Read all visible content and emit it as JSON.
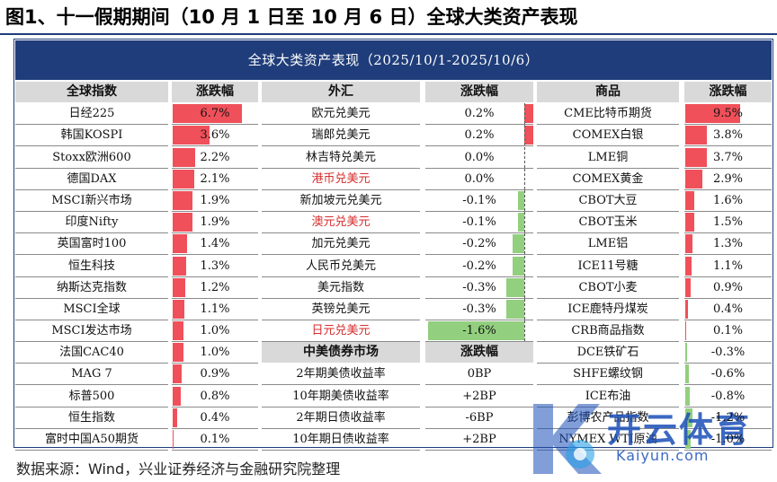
{
  "figure_title": "图1、十一假期期间（10 月 1 日至 10 月 6 日）全球大类资产表现",
  "banner": "全球大类资产表现（2025/10/1-2025/10/6）",
  "source": "数据来源：Wind，兴业证券经济与金融研究院整理",
  "watermark": {
    "text": "开云体育",
    "url": "Kaiyun.com"
  },
  "colors": {
    "navy": "#1f3d7a",
    "up": "#f0505a",
    "down": "#92cf7e",
    "header_gray": "#d9d9d9"
  },
  "equity": {
    "headers": [
      "全球指数",
      "涨跌幅"
    ],
    "rows": [
      {
        "name": "日经225",
        "value": "6.7%",
        "pct": 6.7
      },
      {
        "name": "韩国KOSPI",
        "value": "3.6%",
        "pct": 3.6
      },
      {
        "name": "Stoxx欧洲600",
        "value": "2.2%",
        "pct": 2.2
      },
      {
        "name": "德国DAX",
        "value": "2.1%",
        "pct": 2.1
      },
      {
        "name": "MSCI新兴市场",
        "value": "1.9%",
        "pct": 1.9
      },
      {
        "name": "印度Nifty",
        "value": "1.9%",
        "pct": 1.9
      },
      {
        "name": "英国富时100",
        "value": "1.4%",
        "pct": 1.4
      },
      {
        "name": "恒生科技",
        "value": "1.3%",
        "pct": 1.3
      },
      {
        "name": "纳斯达克指数",
        "value": "1.2%",
        "pct": 1.2
      },
      {
        "name": "MSCI全球",
        "value": "1.1%",
        "pct": 1.1
      },
      {
        "name": "MSCI发达市场",
        "value": "1.0%",
        "pct": 1.0
      },
      {
        "name": "法国CAC40",
        "value": "1.0%",
        "pct": 1.0
      },
      {
        "name": "MAG 7",
        "value": "0.9%",
        "pct": 0.9
      },
      {
        "name": "标普500",
        "value": "0.8%",
        "pct": 0.8
      },
      {
        "name": "恒生指数",
        "value": "0.4%",
        "pct": 0.4
      },
      {
        "name": "富时中国A50期货",
        "value": "0.1%",
        "pct": 0.1
      }
    ]
  },
  "fx": {
    "headers": [
      "外汇",
      "涨跌幅"
    ],
    "rows": [
      {
        "name": "欧元兑美元",
        "value": "0.2%",
        "pct": 0.2,
        "red": false
      },
      {
        "name": "瑞郎兑美元",
        "value": "0.2%",
        "pct": 0.2,
        "red": false
      },
      {
        "name": "林吉特兑美元",
        "value": "0.0%",
        "pct": 0.0,
        "red": false
      },
      {
        "name": "港币兑美元",
        "value": "0.0%",
        "pct": 0.0,
        "red": true
      },
      {
        "name": "新加坡元兑美元",
        "value": "-0.1%",
        "pct": -0.1,
        "red": false
      },
      {
        "name": "澳元兑美元",
        "value": "-0.1%",
        "pct": -0.1,
        "red": true
      },
      {
        "name": "加元兑美元",
        "value": "-0.2%",
        "pct": -0.2,
        "red": false
      },
      {
        "name": "人民币兑美元",
        "value": "-0.2%",
        "pct": -0.2,
        "red": false
      },
      {
        "name": "美元指数",
        "value": "-0.3%",
        "pct": -0.3,
        "red": false
      },
      {
        "name": "英镑兑美元",
        "value": "-0.3%",
        "pct": -0.3,
        "red": false
      },
      {
        "name": "日元兑美元",
        "value": "-1.6%",
        "pct": -1.6,
        "red": true
      }
    ]
  },
  "bonds": {
    "headers": [
      "中美债券市场",
      "涨跌幅"
    ],
    "rows": [
      {
        "name": "2年期美债收益率",
        "value": "0BP"
      },
      {
        "name": "10年期美债收益率",
        "value": "+2BP"
      },
      {
        "name": "2年期日债收益率",
        "value": "-6BP"
      },
      {
        "name": "10年期日债收益率",
        "value": "+2BP"
      }
    ]
  },
  "commodities": {
    "headers": [
      "商品",
      "涨跌幅"
    ],
    "rows": [
      {
        "name": "CME比特币期货",
        "value": "9.5%",
        "pct": 9.5
      },
      {
        "name": "COMEX白银",
        "value": "3.8%",
        "pct": 3.8
      },
      {
        "name": "LME铜",
        "value": "3.7%",
        "pct": 3.7
      },
      {
        "name": "COMEX黄金",
        "value": "2.9%",
        "pct": 2.9
      },
      {
        "name": "CBOT大豆",
        "value": "1.6%",
        "pct": 1.6
      },
      {
        "name": "CBOT玉米",
        "value": "1.5%",
        "pct": 1.5
      },
      {
        "name": "LME铝",
        "value": "1.3%",
        "pct": 1.3
      },
      {
        "name": "ICE11号糖",
        "value": "1.1%",
        "pct": 1.1
      },
      {
        "name": "CBOT小麦",
        "value": "0.9%",
        "pct": 0.9
      },
      {
        "name": "ICE鹿特丹煤炭",
        "value": "0.4%",
        "pct": 0.4
      },
      {
        "name": "CRB商品指数",
        "value": "0.1%",
        "pct": 0.1
      },
      {
        "name": "DCE铁矿石",
        "value": "-0.3%",
        "pct": -0.3
      },
      {
        "name": "SHFE螺纹钢",
        "value": "-0.6%",
        "pct": -0.6
      },
      {
        "name": "ICE布油",
        "value": "-0.8%",
        "pct": -0.8
      },
      {
        "name": "彭博农产品指数",
        "value": "-1.2%",
        "pct": -1.2
      },
      {
        "name": "NYMEX WTI原油",
        "value": "-1.0%",
        "pct": -1.0
      }
    ]
  }
}
